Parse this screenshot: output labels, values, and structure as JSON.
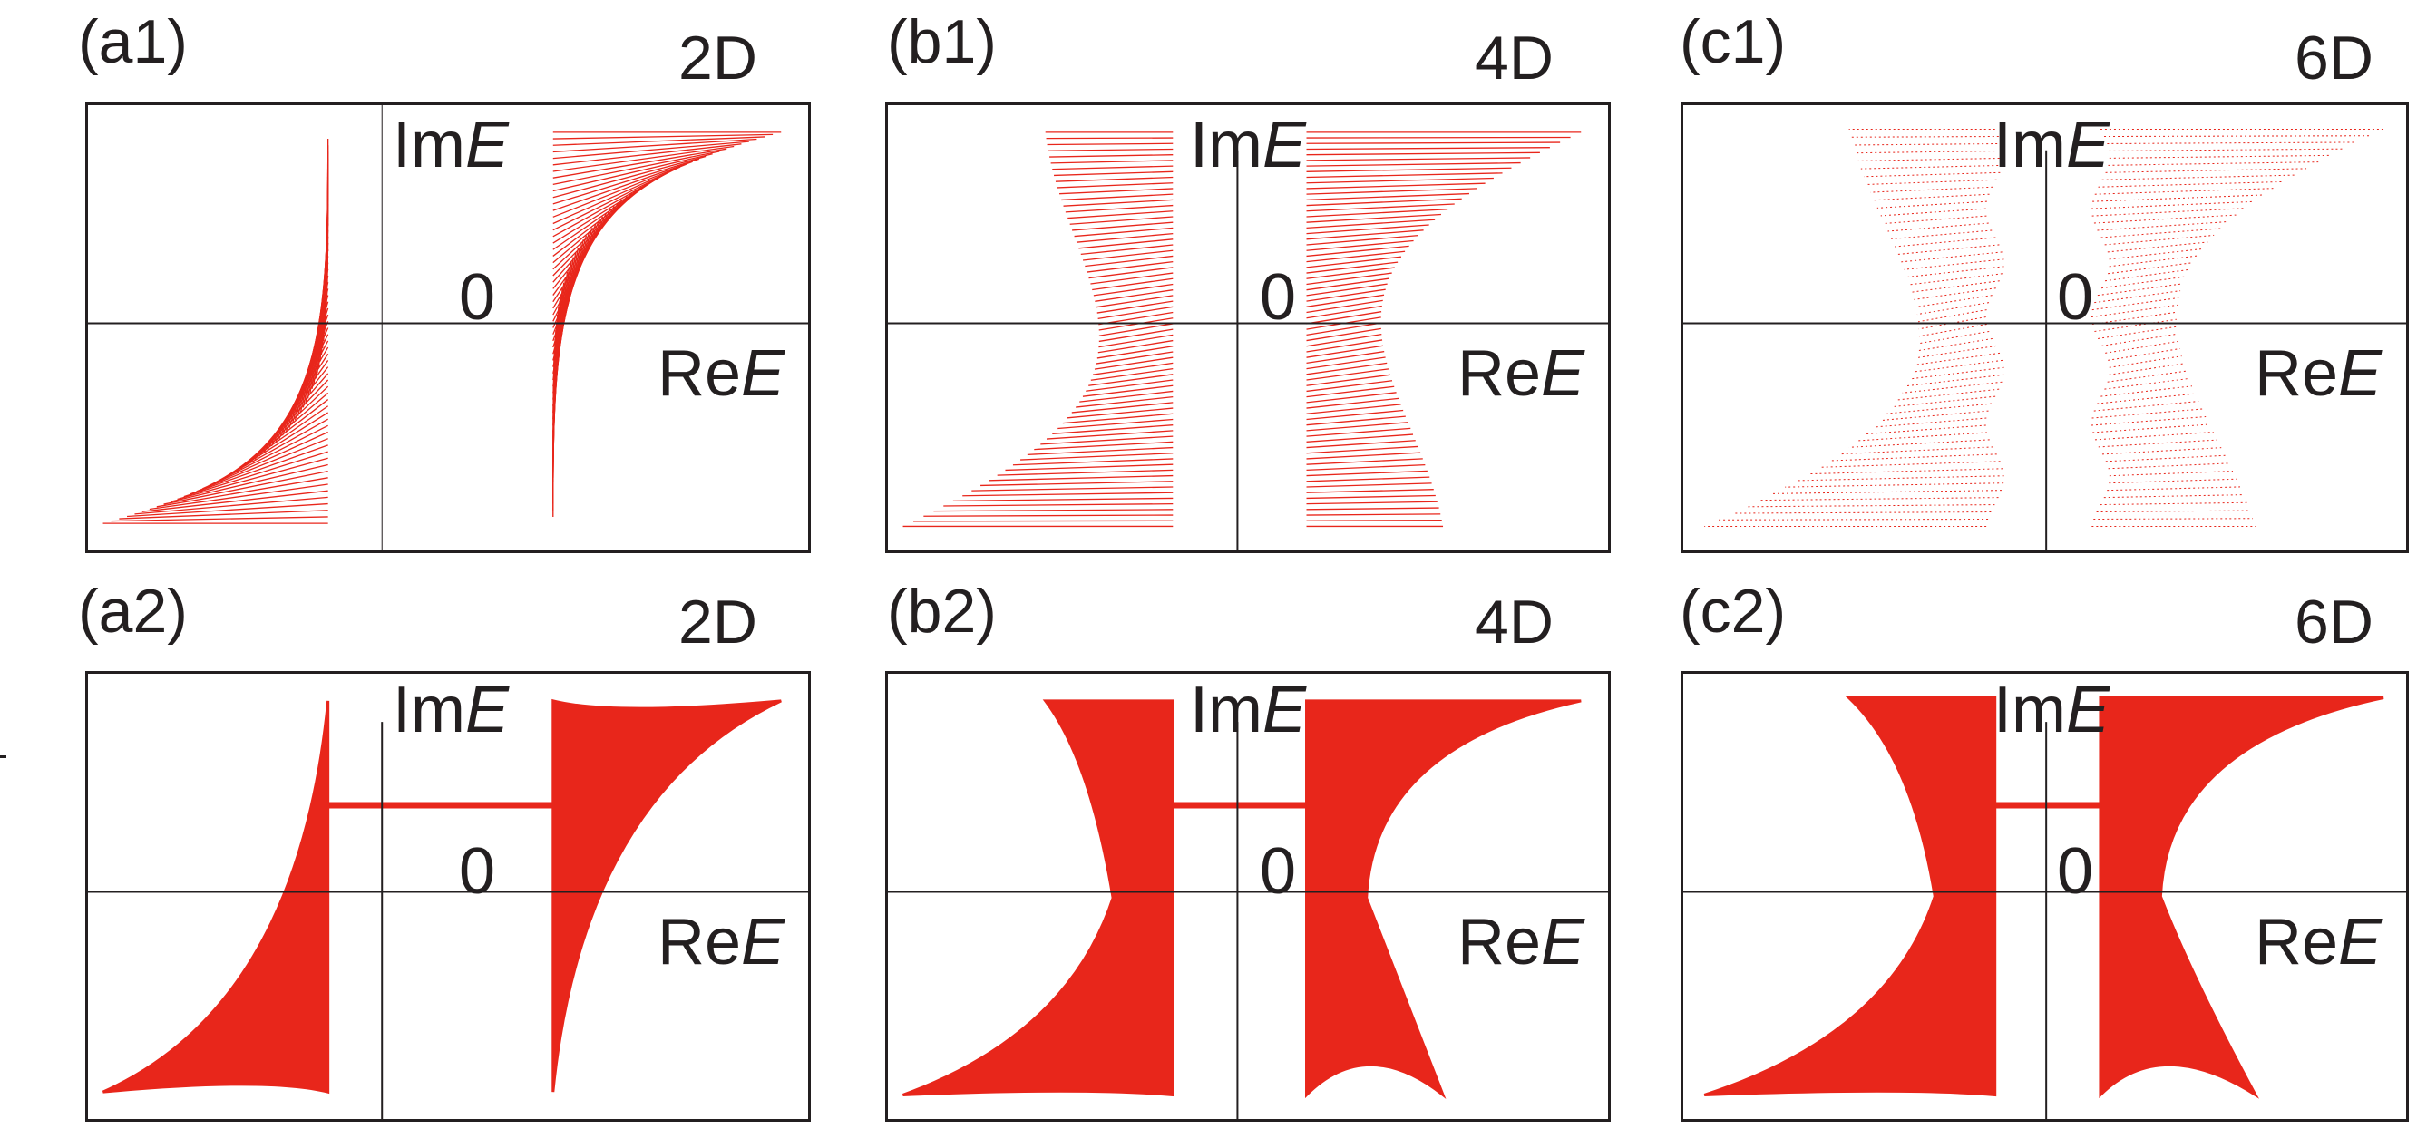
{
  "figure": {
    "axis_real": "Re",
    "axis_imag": "Im",
    "axis_var": "E",
    "origin": "0",
    "accent_color": "#e8261b",
    "axis_color": "#231f20",
    "panels": [
      {
        "id": "a1",
        "label": "(a1)",
        "dim": "2D",
        "style": "wire",
        "shape": "2d"
      },
      {
        "id": "b1",
        "label": "(b1)",
        "dim": "4D",
        "style": "wire",
        "shape": "4d"
      },
      {
        "id": "c1",
        "label": "(c1)",
        "dim": "6D",
        "style": "wire",
        "shape": "6d"
      },
      {
        "id": "a2",
        "label": "(a2)",
        "dim": "2D",
        "style": "fill",
        "shape": "2d"
      },
      {
        "id": "b2",
        "label": "(b2)",
        "dim": "4D",
        "style": "fill",
        "shape": "4d"
      },
      {
        "id": "c2",
        "label": "(c2)",
        "dim": "6D",
        "style": "fill",
        "shape": "6d"
      }
    ]
  }
}
